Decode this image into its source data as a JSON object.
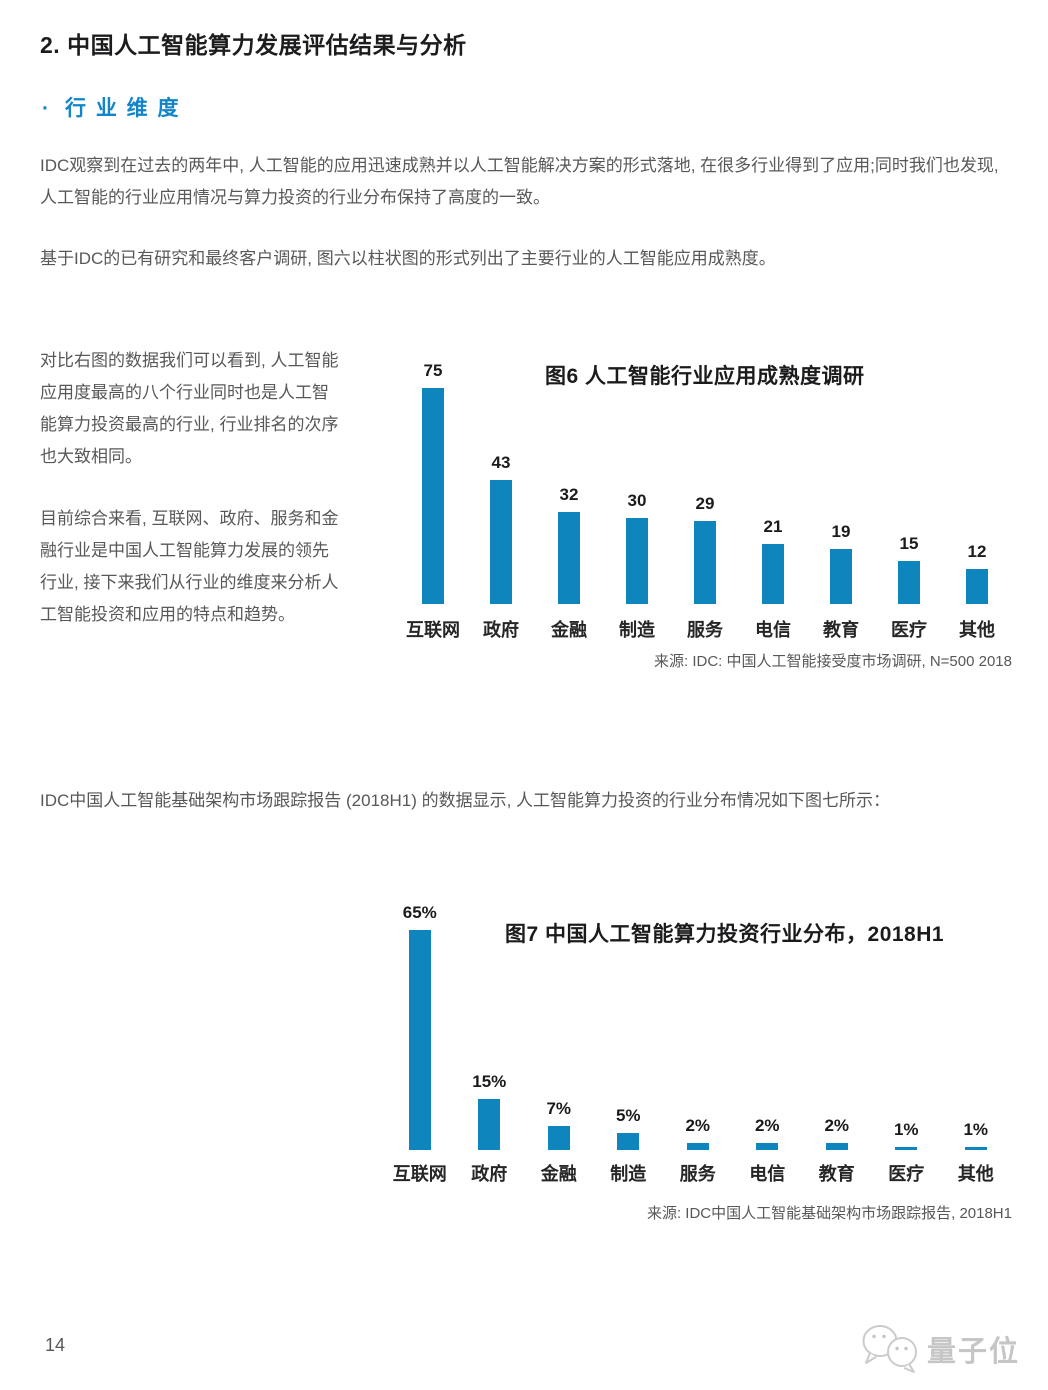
{
  "page": {
    "heading": "2. 中国人工智能算力发展评估结果与分析",
    "section_bullet": "·",
    "section_heading": "行 业 维 度",
    "paragraphs": {
      "p1": "IDC观察到在过去的两年中, 人工智能的应用迅速成熟并以人工智能解决方案的形式落地, 在很多行业得到了应用;同时我们也发现, 人工智能的行业应用情况与算力投资的行业分布保持了高度的一致。",
      "p2": "基于IDC的已有研究和最终客户调研, 图六以柱状图的形式列出了主要行业的人工智能应用成熟度。",
      "p3": "对比右图的数据我们可以看到, 人工智能应用度最高的八个行业同时也是人工智能算力投资最高的行业, 行业排名的次序也大致相同。",
      "p4": "目前综合来看, 互联网、政府、服务和金融行业是中国人工智能算力发展的领先行业, 接下来我们从行业的维度来分析人工智能投资和应用的特点和趋势。",
      "p5": "IDC中国人工智能基础架构市场跟踪报告 (2018H1) 的数据显示, 人工智能算力投资的行业分布情况如下图七所示："
    },
    "footer": {
      "page_number": "14",
      "logo_text": "量子位"
    },
    "colors": {
      "bar_blue": "#0E86BD",
      "section_blue": "#1285C8"
    }
  },
  "chart_data": [
    {
      "type": "bar",
      "title": "图6 人工智能行业应用成熟度调研",
      "categories": [
        "互联网",
        "政府",
        "金融",
        "制造",
        "服务",
        "电信",
        "教育",
        "医疗",
        "其他"
      ],
      "values": [
        75,
        43,
        32,
        30,
        29,
        21,
        19,
        15,
        12
      ],
      "value_labels": [
        "75",
        "43",
        "32",
        "30",
        "29",
        "21",
        "19",
        "15",
        "12"
      ],
      "source": "来源: IDC: 中国人工智能接受度市场调研, N=500  2018",
      "xlabel": "",
      "ylabel": "",
      "ylim": [
        0,
        80
      ],
      "grid": false,
      "legend": "none",
      "bar_color": "#0E86BD"
    },
    {
      "type": "bar",
      "title": "图7 中国人工智能算力投资行业分布，2018H1",
      "categories": [
        "互联网",
        "政府",
        "金融",
        "制造",
        "服务",
        "电信",
        "教育",
        "医疗",
        "其他"
      ],
      "values": [
        65,
        15,
        7,
        5,
        2,
        2,
        2,
        1,
        1
      ],
      "value_labels": [
        "65%",
        "15%",
        "7%",
        "5%",
        "2%",
        "2%",
        "2%",
        "1%",
        "1%"
      ],
      "source": "来源: IDC中国人工智能基础架构市场跟踪报告, 2018H1",
      "xlabel": "",
      "ylabel": "",
      "ylim": [
        0,
        70
      ],
      "grid": false,
      "legend": "none",
      "unit": "%",
      "bar_color": "#0E86BD"
    }
  ]
}
